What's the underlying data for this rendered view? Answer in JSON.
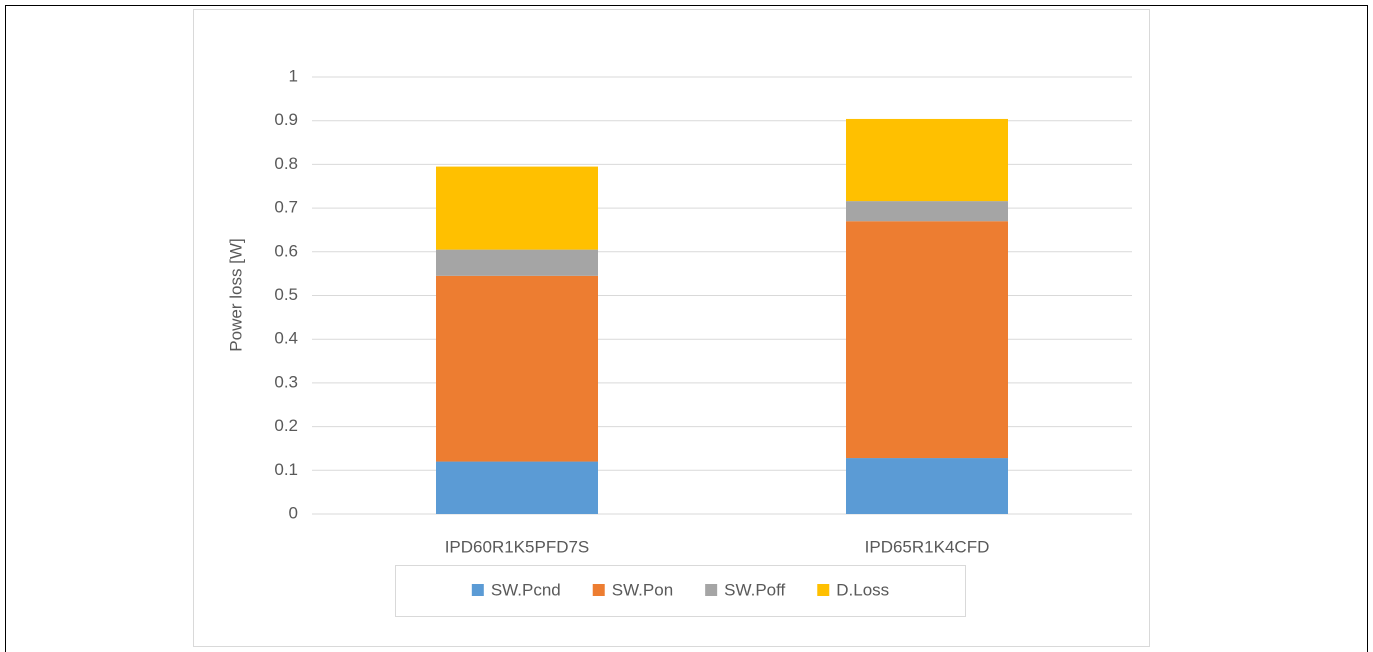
{
  "chart_data": {
    "type": "stacked_bar",
    "y_label": "Power loss [W]",
    "categories": [
      "IPD60R1K5PFD7S",
      "IPD65R1K4CFD"
    ],
    "series": [
      {
        "name": "SW.Pcnd",
        "color": "#5b9bd5",
        "values": [
          0.12,
          0.128
        ]
      },
      {
        "name": "SW.Pon",
        "color": "#ed7d31",
        "values": [
          0.425,
          0.542
        ]
      },
      {
        "name": "SW.Poff",
        "color": "#a5a5a5",
        "values": [
          0.06,
          0.046
        ]
      },
      {
        "name": "D.Loss",
        "color": "#ffc000",
        "values": [
          0.19,
          0.188
        ]
      }
    ],
    "ylim": [
      0,
      1
    ],
    "yticks": [
      0,
      0.1,
      0.2,
      0.3,
      0.4,
      0.5,
      0.6,
      0.7,
      0.8,
      0.9,
      1
    ],
    "grid": true,
    "legend": "bottom"
  }
}
